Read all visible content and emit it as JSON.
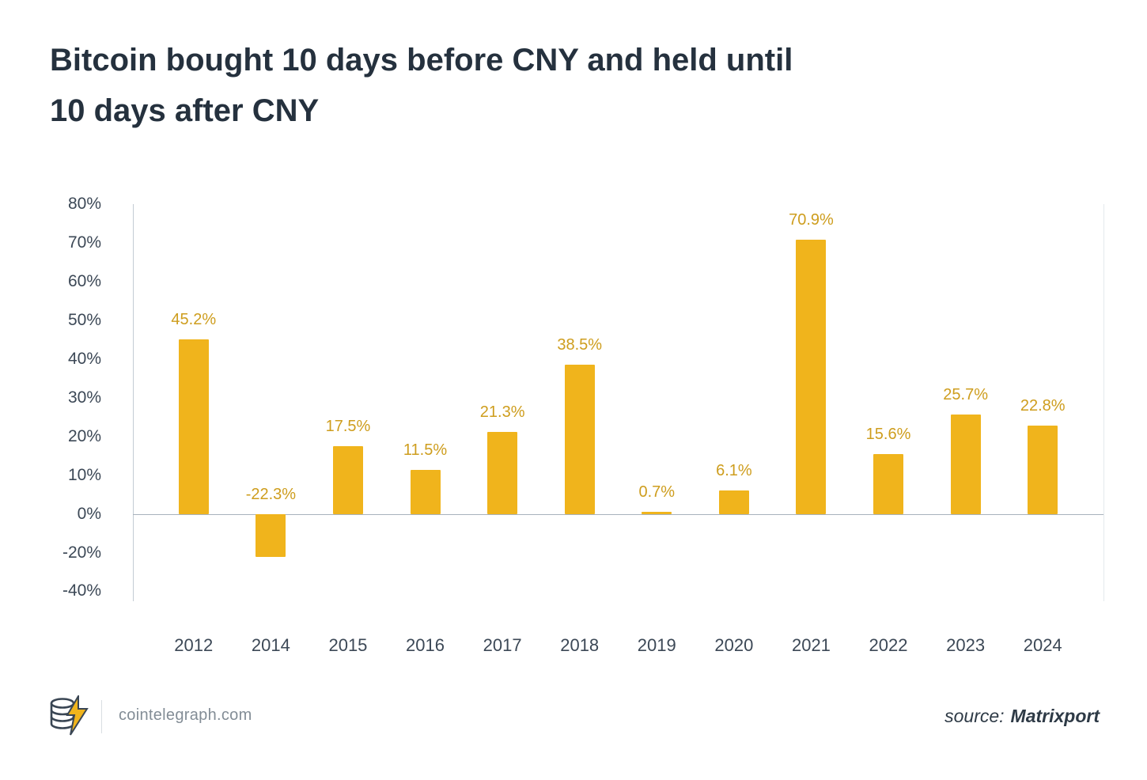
{
  "title": {
    "line1": "Bitcoin bought 10 days before CNY and held until",
    "line2": "10 days after CNY"
  },
  "chart_data": {
    "type": "bar",
    "title": "Bitcoin bought 10 days before CNY and held until 10 days after CNY",
    "categories": [
      "2012",
      "2014",
      "2015",
      "2016",
      "2017",
      "2018",
      "2019",
      "2020",
      "2021",
      "2022",
      "2023",
      "2024"
    ],
    "values": [
      45.2,
      -22.3,
      17.5,
      11.5,
      21.3,
      38.5,
      0.7,
      6.1,
      70.9,
      15.6,
      25.7,
      22.8
    ],
    "labels": [
      "45.2%",
      "-22.3%",
      "17.5%",
      "11.5%",
      "21.3%",
      "38.5%",
      "0.7%",
      "6.1%",
      "70.9%",
      "15.6%",
      "25.7%",
      "22.8%"
    ],
    "xlabel": "",
    "ylabel": "",
    "ylim": [
      -40,
      80
    ],
    "y_ticks": [
      "80%",
      "70%",
      "60%",
      "50%",
      "40%",
      "30%",
      "20%",
      "10%",
      "0%",
      "-20%",
      "-40%"
    ],
    "y_tick_values": [
      80,
      70,
      60,
      50,
      40,
      30,
      20,
      10,
      0,
      -20,
      -40
    ],
    "y_axis_compressed_below_zero": true,
    "grid": false,
    "legend": false,
    "bar_color": "#F0B41C",
    "value_label_color": "#CE9D1D"
  },
  "colors": {
    "accent_yellow": "#F0B41C",
    "title_text": "#25313E",
    "axis_text": "#3C4856",
    "zero_line": "#A8B2BC",
    "axis_line": "#C3CBD3"
  },
  "footer": {
    "brand": "cointelegraph.com",
    "source_label": "source:",
    "source_value": "Matrixport"
  }
}
